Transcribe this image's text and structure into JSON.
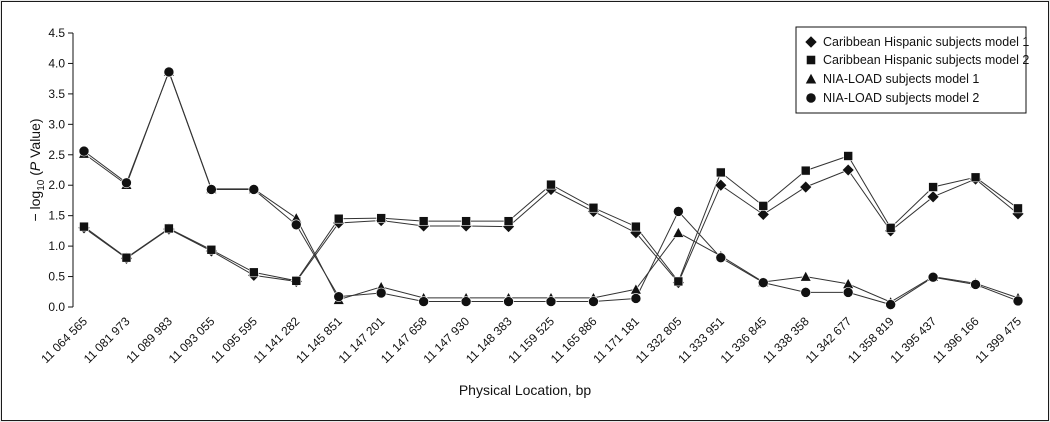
{
  "chart_data": {
    "type": "line",
    "xlabel": "Physical Location, bp",
    "ylabel_prefix": "− log",
    "ylabel_sub": "10",
    "ylabel_open": " (",
    "ylabel_italic": "P",
    "ylabel_suffix": " Value)",
    "ylim": [
      0,
      4.5
    ],
    "yticks": [
      "0.0",
      "0.5",
      "1.0",
      "1.5",
      "2.0",
      "2.5",
      "3.0",
      "3.5",
      "4.0",
      "4.5"
    ],
    "categories": [
      "11064565",
      "11081973",
      "11089983",
      "11093055",
      "11095595",
      "11141282",
      "11145851",
      "11147201",
      "11147658",
      "11147930",
      "11148383",
      "11159525",
      "11165886",
      "11171181",
      "11332805",
      "11333951",
      "11336845",
      "11338358",
      "11342677",
      "11358819",
      "11395437",
      "11396166",
      "11399475"
    ],
    "category_labels": [
      "11 064 565",
      "11 081 973",
      "11 089 983",
      "11 093 055",
      "11 095 595",
      "11 141 282",
      "11 145 851",
      "11 147 201",
      "11 147 658",
      "11 147 930",
      "11 148 383",
      "11 159 525",
      "11 165 886",
      "11 171 181",
      "11 332 805",
      "11 333 951",
      "11 336 845",
      "11 338 358",
      "11 342 677",
      "11 358 819",
      "11 395 437",
      "11 396 166",
      "11 399 475"
    ],
    "legend_position": "top-right",
    "grid": false,
    "series": [
      {
        "name": "Caribbean Hispanic subjects model 1",
        "marker": "diamond",
        "values": [
          1.3,
          0.8,
          1.28,
          0.92,
          0.52,
          0.42,
          1.38,
          1.42,
          1.33,
          1.33,
          1.32,
          1.93,
          1.57,
          1.22,
          0.4,
          2.0,
          1.52,
          1.97,
          2.25,
          1.25,
          1.81,
          2.1,
          1.53
        ]
      },
      {
        "name": "Caribbean Hispanic subjects model 2",
        "marker": "square",
        "values": [
          1.32,
          0.81,
          1.29,
          0.94,
          0.57,
          0.43,
          1.45,
          1.46,
          1.41,
          1.41,
          1.41,
          2.01,
          1.63,
          1.32,
          0.42,
          2.21,
          1.66,
          2.24,
          2.48,
          1.3,
          1.97,
          2.13,
          1.62
        ]
      },
      {
        "name": "NIA-LOAD subjects model 1",
        "marker": "triangle",
        "values": [
          2.52,
          2.01,
          3.87,
          1.94,
          1.94,
          1.46,
          0.12,
          0.33,
          0.15,
          0.15,
          0.15,
          0.15,
          0.15,
          0.29,
          1.22,
          0.84,
          0.41,
          0.5,
          0.38,
          0.08,
          0.5,
          0.39,
          0.15
        ]
      },
      {
        "name": "NIA-LOAD subjects model 2",
        "marker": "circle",
        "values": [
          2.56,
          2.04,
          3.86,
          1.93,
          1.93,
          1.35,
          0.17,
          0.23,
          0.09,
          0.09,
          0.09,
          0.09,
          0.09,
          0.14,
          1.57,
          0.81,
          0.4,
          0.24,
          0.24,
          0.04,
          0.49,
          0.37,
          0.1
        ]
      }
    ]
  }
}
